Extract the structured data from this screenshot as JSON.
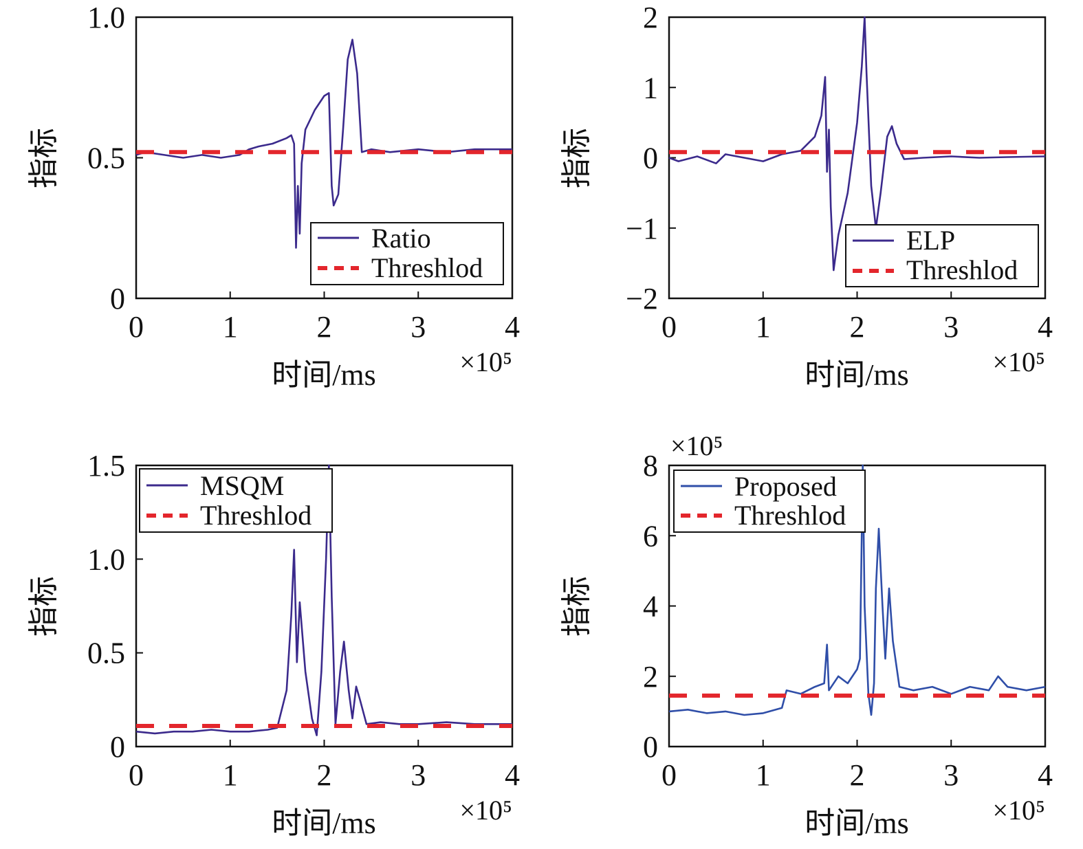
{
  "colors": {
    "ratio_line": "#3b2a8c",
    "elp_line": "#3b2a8c",
    "msqm_line": "#3b2a8c",
    "proposed_line": "#2f4ea8",
    "threshold": "#e3262c",
    "axes": "#111111",
    "background": "#ffffff"
  },
  "chart_data": [
    {
      "type": "line",
      "xlabel": "时间/ms",
      "ylabel": "指标",
      "x_scale_label": "×10⁵",
      "y_scale_label": "",
      "xlim": [
        0,
        4
      ],
      "ylim": [
        0,
        1
      ],
      "xticks": [
        0,
        1,
        2,
        3,
        4
      ],
      "xtick_labels": [
        "0",
        "1",
        "2",
        "3",
        "4"
      ],
      "yticks": [
        0,
        0.5,
        1
      ],
      "ytick_labels": [
        "0",
        "0.5",
        "1.0"
      ],
      "legend_placement": "lower-right",
      "grid": false,
      "series": [
        {
          "name": "Ratio",
          "style": "solid",
          "points": [
            [
              0,
              0.51
            ],
            [
              0.1,
              0.52
            ],
            [
              0.3,
              0.51
            ],
            [
              0.5,
              0.5
            ],
            [
              0.7,
              0.51
            ],
            [
              0.9,
              0.5
            ],
            [
              1.1,
              0.51
            ],
            [
              1.2,
              0.53
            ],
            [
              1.3,
              0.54
            ],
            [
              1.45,
              0.55
            ],
            [
              1.6,
              0.57
            ],
            [
              1.65,
              0.58
            ],
            [
              1.68,
              0.55
            ],
            [
              1.7,
              0.18
            ],
            [
              1.72,
              0.4
            ],
            [
              1.74,
              0.23
            ],
            [
              1.76,
              0.48
            ],
            [
              1.8,
              0.6
            ],
            [
              1.9,
              0.67
            ],
            [
              2.0,
              0.72
            ],
            [
              2.05,
              0.73
            ],
            [
              2.08,
              0.4
            ],
            [
              2.1,
              0.33
            ],
            [
              2.15,
              0.37
            ],
            [
              2.2,
              0.6
            ],
            [
              2.25,
              0.85
            ],
            [
              2.3,
              0.92
            ],
            [
              2.35,
              0.8
            ],
            [
              2.4,
              0.52
            ],
            [
              2.5,
              0.53
            ],
            [
              2.7,
              0.52
            ],
            [
              3.0,
              0.53
            ],
            [
              3.3,
              0.52
            ],
            [
              3.6,
              0.53
            ],
            [
              4.0,
              0.53
            ]
          ]
        },
        {
          "name": "Threshlod",
          "style": "dashed",
          "points": [
            [
              0,
              0.52
            ],
            [
              4,
              0.52
            ]
          ]
        }
      ]
    },
    {
      "type": "line",
      "xlabel": "时间/ms",
      "ylabel": "指标",
      "x_scale_label": "×10⁵",
      "y_scale_label": "",
      "xlim": [
        0,
        4
      ],
      "ylim": [
        -2,
        2
      ],
      "xticks": [
        0,
        1,
        2,
        3,
        4
      ],
      "xtick_labels": [
        "0",
        "1",
        "2",
        "3",
        "4"
      ],
      "yticks": [
        -2,
        -1,
        0,
        1,
        2
      ],
      "ytick_labels": [
        "−2",
        "−1",
        "0",
        "1",
        "2"
      ],
      "legend_placement": "lower-right",
      "grid": false,
      "series": [
        {
          "name": "ELP",
          "style": "solid",
          "points": [
            [
              0,
              0.0
            ],
            [
              0.1,
              -0.05
            ],
            [
              0.3,
              0.02
            ],
            [
              0.5,
              -0.08
            ],
            [
              0.6,
              0.05
            ],
            [
              0.8,
              0.0
            ],
            [
              1.0,
              -0.05
            ],
            [
              1.2,
              0.05
            ],
            [
              1.4,
              0.1
            ],
            [
              1.55,
              0.3
            ],
            [
              1.62,
              0.6
            ],
            [
              1.66,
              1.15
            ],
            [
              1.68,
              -0.2
            ],
            [
              1.7,
              0.4
            ],
            [
              1.72,
              -0.7
            ],
            [
              1.75,
              -1.6
            ],
            [
              1.8,
              -1.1
            ],
            [
              1.9,
              -0.5
            ],
            [
              2.0,
              0.5
            ],
            [
              2.05,
              1.3
            ],
            [
              2.08,
              2.0
            ],
            [
              2.1,
              1.2
            ],
            [
              2.15,
              -0.4
            ],
            [
              2.2,
              -1.0
            ],
            [
              2.25,
              -0.5
            ],
            [
              2.32,
              0.3
            ],
            [
              2.37,
              0.45
            ],
            [
              2.42,
              0.2
            ],
            [
              2.5,
              -0.02
            ],
            [
              2.7,
              0.0
            ],
            [
              3.0,
              0.02
            ],
            [
              3.3,
              0.0
            ],
            [
              3.6,
              0.01
            ],
            [
              4.0,
              0.02
            ]
          ]
        },
        {
          "name": "Threshlod",
          "style": "dashed",
          "points": [
            [
              0,
              0.08
            ],
            [
              4,
              0.08
            ]
          ]
        }
      ]
    },
    {
      "type": "line",
      "xlabel": "时间/ms",
      "ylabel": "指标",
      "x_scale_label": "×10⁵",
      "y_scale_label": "",
      "xlim": [
        0,
        4
      ],
      "ylim": [
        0,
        1.5
      ],
      "xticks": [
        0,
        1,
        2,
        3,
        4
      ],
      "xtick_labels": [
        "0",
        "1",
        "2",
        "3",
        "4"
      ],
      "yticks": [
        0,
        0.5,
        1,
        1.5
      ],
      "ytick_labels": [
        "0",
        "0.5",
        "1.0",
        "1.5"
      ],
      "legend_placement": "top-left",
      "grid": false,
      "series": [
        {
          "name": "MSQM",
          "style": "solid",
          "points": [
            [
              0,
              0.08
            ],
            [
              0.2,
              0.07
            ],
            [
              0.4,
              0.08
            ],
            [
              0.6,
              0.08
            ],
            [
              0.8,
              0.09
            ],
            [
              1.0,
              0.08
            ],
            [
              1.2,
              0.08
            ],
            [
              1.4,
              0.09
            ],
            [
              1.5,
              0.1
            ],
            [
              1.6,
              0.3
            ],
            [
              1.65,
              0.7
            ],
            [
              1.68,
              1.05
            ],
            [
              1.71,
              0.45
            ],
            [
              1.74,
              0.77
            ],
            [
              1.8,
              0.4
            ],
            [
              1.87,
              0.15
            ],
            [
              1.92,
              0.06
            ],
            [
              1.97,
              0.4
            ],
            [
              2.02,
              1.0
            ],
            [
              2.05,
              1.5
            ],
            [
              2.08,
              0.8
            ],
            [
              2.12,
              0.12
            ],
            [
              2.17,
              0.4
            ],
            [
              2.21,
              0.56
            ],
            [
              2.26,
              0.3
            ],
            [
              2.3,
              0.15
            ],
            [
              2.34,
              0.32
            ],
            [
              2.38,
              0.25
            ],
            [
              2.45,
              0.12
            ],
            [
              2.6,
              0.13
            ],
            [
              2.8,
              0.12
            ],
            [
              3.0,
              0.12
            ],
            [
              3.3,
              0.13
            ],
            [
              3.6,
              0.12
            ],
            [
              4.0,
              0.12
            ]
          ]
        },
        {
          "name": "Threshlod",
          "style": "dashed",
          "points": [
            [
              0,
              0.11
            ],
            [
              4,
              0.11
            ]
          ]
        }
      ]
    },
    {
      "type": "line",
      "xlabel": "时间/ms",
      "ylabel": "指标",
      "x_scale_label": "×10⁵",
      "y_scale_label": "×10⁵",
      "xlim": [
        0,
        4
      ],
      "ylim": [
        0,
        8
      ],
      "xticks": [
        0,
        1,
        2,
        3,
        4
      ],
      "xtick_labels": [
        "0",
        "1",
        "2",
        "3",
        "4"
      ],
      "yticks": [
        0,
        2,
        4,
        6,
        8
      ],
      "ytick_labels": [
        "0",
        "2",
        "4",
        "6",
        "8"
      ],
      "legend_placement": "top-left",
      "grid": false,
      "series": [
        {
          "name": "Proposed",
          "style": "solid",
          "points": [
            [
              0,
              1.0
            ],
            [
              0.2,
              1.05
            ],
            [
              0.4,
              0.95
            ],
            [
              0.6,
              1.0
            ],
            [
              0.8,
              0.9
            ],
            [
              1.0,
              0.95
            ],
            [
              1.2,
              1.1
            ],
            [
              1.25,
              1.6
            ],
            [
              1.4,
              1.5
            ],
            [
              1.55,
              1.7
            ],
            [
              1.65,
              1.8
            ],
            [
              1.68,
              2.9
            ],
            [
              1.7,
              1.6
            ],
            [
              1.8,
              2.0
            ],
            [
              1.9,
              1.8
            ],
            [
              2.0,
              2.2
            ],
            [
              2.03,
              2.5
            ],
            [
              2.06,
              8.0
            ],
            [
              2.08,
              4.0
            ],
            [
              2.12,
              1.5
            ],
            [
              2.15,
              0.9
            ],
            [
              2.18,
              1.8
            ],
            [
              2.2,
              4.5
            ],
            [
              2.23,
              6.2
            ],
            [
              2.27,
              4.0
            ],
            [
              2.3,
              2.5
            ],
            [
              2.34,
              4.5
            ],
            [
              2.38,
              3.0
            ],
            [
              2.45,
              1.7
            ],
            [
              2.6,
              1.6
            ],
            [
              2.8,
              1.7
            ],
            [
              3.0,
              1.5
            ],
            [
              3.2,
              1.7
            ],
            [
              3.4,
              1.6
            ],
            [
              3.5,
              2.0
            ],
            [
              3.6,
              1.7
            ],
            [
              3.8,
              1.6
            ],
            [
              4.0,
              1.7
            ]
          ]
        },
        {
          "name": "Threshlod",
          "style": "dashed",
          "points": [
            [
              0,
              1.45
            ],
            [
              4,
              1.45
            ]
          ]
        }
      ]
    }
  ]
}
